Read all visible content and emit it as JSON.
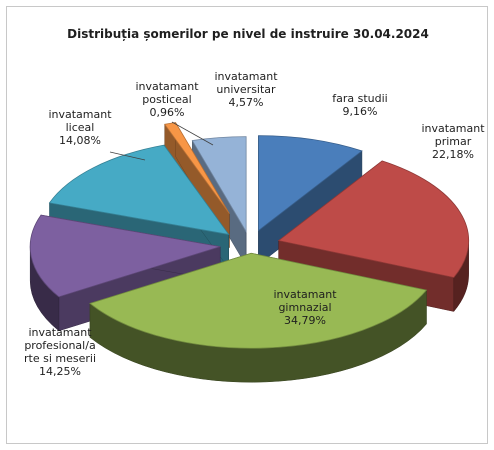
{
  "chart_data": {
    "type": "pie",
    "title": "Distribuția șomerilor pe nivel de  instruire 30.04.2024",
    "series": [
      {
        "label": [
          "fara studii",
          "9,16%"
        ],
        "value": 9.16,
        "color": "#4a7ebb"
      },
      {
        "label": [
          "invatamant",
          "primar",
          "22,18%"
        ],
        "value": 22.18,
        "color": "#be4b48"
      },
      {
        "label": [
          "invatamant",
          "gimnazial",
          "34,79%"
        ],
        "value": 34.79,
        "color": "#98b954"
      },
      {
        "label": [
          "invatamant",
          "profesional/a",
          "rte si meserii",
          "14,25%"
        ],
        "value": 14.25,
        "color": "#7d60a0"
      },
      {
        "label": [
          "invatamant",
          "liceal",
          "14,08%"
        ],
        "value": 14.08,
        "color": "#46aac5"
      },
      {
        "label": [
          "invatamant",
          "posticeal",
          "0,96%"
        ],
        "value": 0.96,
        "color": "#f79646"
      },
      {
        "label": [
          "invatamant",
          "universitar",
          "4,57%"
        ],
        "value": 4.57,
        "color": "#95b3d7"
      }
    ]
  }
}
